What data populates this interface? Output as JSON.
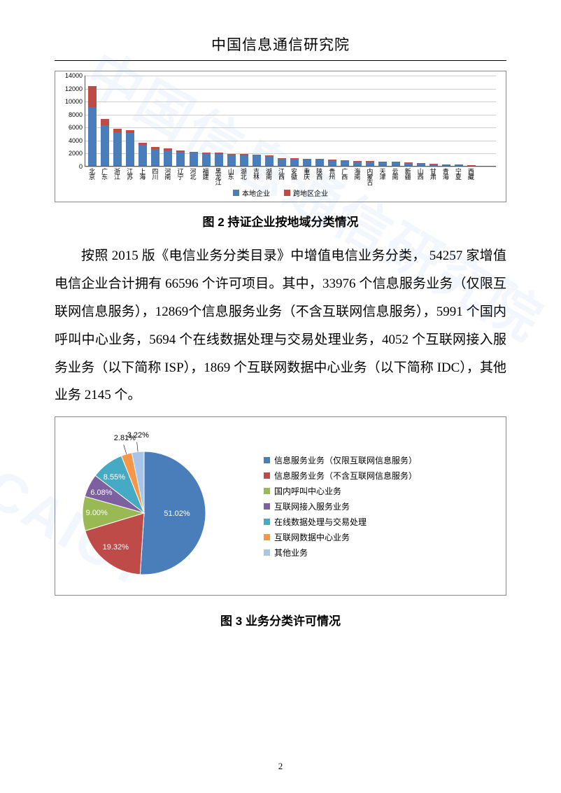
{
  "header": {
    "title": "中国信息通信研究院"
  },
  "watermark": {
    "text1": "中国信息通信研究院",
    "text2": "CAICT"
  },
  "bar_chart": {
    "type": "stacked-bar",
    "caption": "图 2  持证企业按地域分类情况",
    "y_max": 14000,
    "y_ticks": [
      0,
      2000,
      4000,
      6000,
      8000,
      10000,
      12000,
      14000
    ],
    "grid_color": "#cccccc",
    "axis_color": "#555555",
    "series": [
      {
        "name": "本地企业",
        "color": "#4a7ebb"
      },
      {
        "name": "跨地区企业",
        "color": "#be4b48"
      }
    ],
    "categories": [
      "北京",
      "广东",
      "浙江",
      "江苏",
      "上海",
      "四川",
      "河南",
      "辽宁",
      "河北",
      "福建",
      "黑龙江",
      "山东",
      "湖北",
      "吉林",
      "湖南",
      "江西",
      "安徽",
      "重庆",
      "陕西",
      "贵州",
      "广西",
      "海南",
      "内蒙古",
      "天津",
      "云南",
      "新疆",
      "山西",
      "甘肃",
      "青海",
      "宁夏",
      "西藏"
    ],
    "data": {
      "本地企业": [
        9000,
        6200,
        5200,
        5100,
        3200,
        2600,
        2400,
        2200,
        2000,
        1900,
        1850,
        1700,
        1650,
        1600,
        1500,
        1100,
        1050,
        1000,
        950,
        900,
        800,
        700,
        680,
        600,
        550,
        500,
        350,
        300,
        200,
        150,
        80
      ],
      "跨地区企业": [
        3300,
        1000,
        500,
        400,
        350,
        300,
        250,
        220,
        200,
        180,
        200,
        160,
        150,
        150,
        120,
        100,
        90,
        90,
        80,
        80,
        70,
        60,
        60,
        55,
        50,
        50,
        40,
        35,
        25,
        20,
        15
      ]
    }
  },
  "paragraph": {
    "text": "按照 2015 版《电信业务分类目录》中增值电信业务分类， 54257 家增值电信企业合计拥有 66596 个许可项目。其中，33976 个信息服务业务（仅限互联网信息服务），12869个信息服务业务（不含互联网信息服务），5991 个国内呼叫中心业务，5694 个在线数据处理与交易处理业务，4052 个互联网接入服务业务（以下简称 ISP），1869 个互联网数据中心业务（以下简称 IDC），其他业务 2145 个。"
  },
  "pie_chart": {
    "type": "pie",
    "caption": "图 3  业务分类许可情况",
    "label_fontsize": 11,
    "slices": [
      {
        "label": "信息服务业务（仅限互联网信息服务）",
        "value": 51.02,
        "pct": "51.02%",
        "color": "#4a7ebb"
      },
      {
        "label": "信息服务业务（不含互联网信息服务）",
        "value": 19.32,
        "pct": "19.32%",
        "color": "#be4b48"
      },
      {
        "label": "国内呼叫中心业务",
        "value": 9.0,
        "pct": "9.00%",
        "color": "#98b954"
      },
      {
        "label": "互联网接入服务业务",
        "value": 6.08,
        "pct": "6.08%",
        "color": "#7d60a0"
      },
      {
        "label": "在线数据处理与交易处理",
        "value": 8.55,
        "pct": "8.55%",
        "color": "#46aac5"
      },
      {
        "label": "互联网数据中心业务",
        "value": 2.81,
        "pct": "2.81%",
        "color": "#f79646"
      },
      {
        "label": "其他业务",
        "value": 3.22,
        "pct": "3.22%",
        "color": "#a6c5e8"
      }
    ]
  },
  "page_number": "2"
}
